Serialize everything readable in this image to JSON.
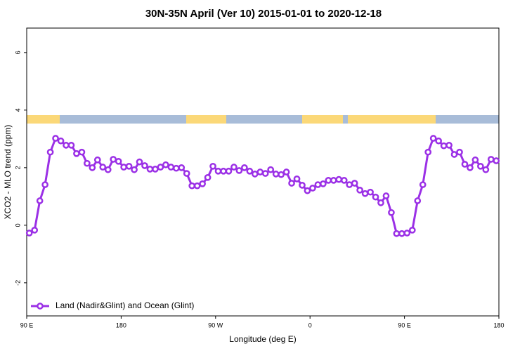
{
  "chart_data": {
    "type": "line",
    "title": "30N-35N April (Ver 10)   2015-01-01 to 2020-12-18",
    "x_label": "Longitude (deg E)",
    "y_label": "XCO2 - MLO trend (ppm)",
    "xlim": [
      90,
      540
    ],
    "ylim": [
      -3.15,
      6.85
    ],
    "xticks": [
      {
        "value": 90,
        "label": "90 E"
      },
      180,
      {
        "value": 270,
        "label": "90 W"
      },
      {
        "value": 360,
        "label": "0"
      },
      {
        "value": 450,
        "label": "90 E"
      },
      {
        "value": 540,
        "label": "180"
      }
    ],
    "yticks": [
      -2,
      0,
      2,
      4,
      6
    ],
    "legend": "bottom-left",
    "x": [
      92.5,
      97.5,
      102.5,
      107.5,
      112.5,
      117.5,
      122.5,
      127.5,
      132.5,
      137.5,
      142.5,
      147.5,
      152.5,
      157.5,
      162.5,
      167.5,
      172.5,
      177.5,
      182.5,
      187.5,
      192.5,
      197.5,
      202.5,
      207.5,
      212.5,
      217.5,
      222.5,
      227.5,
      232.5,
      237.5,
      242.5,
      247.5,
      252.5,
      257.5,
      262.5,
      267.5,
      272.5,
      277.5,
      282.5,
      287.5,
      292.5,
      297.5,
      302.5,
      307.5,
      312.5,
      317.5,
      322.5,
      327.5,
      332.5,
      337.5,
      342.5,
      347.5,
      352.5,
      357.5,
      362.5,
      367.5,
      372.5,
      377.5,
      382.5,
      387.5,
      392.5,
      397.5,
      402.5,
      407.5,
      412.5,
      417.5,
      422.5,
      427.5,
      432.5,
      437.5,
      442.5,
      447.5,
      452.5,
      457.5,
      462.5,
      467.5,
      472.5,
      477.5,
      482.5,
      487.5,
      492.5,
      497.5,
      502.5,
      507.5,
      512.5,
      517.5,
      522.5,
      527.5,
      532.5,
      537.5
    ],
    "series": [
      {
        "name": "Land (Nadir&Glint) and Ocean (Glint)",
        "color": "#9b30e6",
        "values": [
          -0.27,
          -0.17,
          0.85,
          1.41,
          2.54,
          3.02,
          2.93,
          2.78,
          2.78,
          2.49,
          2.54,
          2.15,
          2.0,
          2.27,
          2.02,
          1.93,
          2.29,
          2.22,
          2.02,
          2.05,
          1.93,
          2.2,
          2.07,
          1.95,
          1.95,
          2.02,
          2.1,
          2.02,
          1.98,
          2.0,
          1.8,
          1.37,
          1.37,
          1.44,
          1.66,
          2.05,
          1.88,
          1.88,
          1.88,
          2.02,
          1.9,
          2.0,
          1.88,
          1.78,
          1.85,
          1.8,
          1.93,
          1.78,
          1.76,
          1.85,
          1.46,
          1.61,
          1.39,
          1.2,
          1.29,
          1.41,
          1.44,
          1.56,
          1.56,
          1.59,
          1.56,
          1.41,
          1.46,
          1.22,
          1.1,
          1.15,
          0.98,
          0.78,
          1.02,
          0.44,
          -0.29,
          -0.29,
          -0.27,
          -0.17,
          0.85,
          1.41,
          2.54,
          3.02,
          2.93,
          2.76,
          2.78,
          2.46,
          2.54,
          2.12,
          2.0,
          2.27,
          2.05,
          1.93,
          2.29,
          2.24
        ]
      }
    ]
  }
}
